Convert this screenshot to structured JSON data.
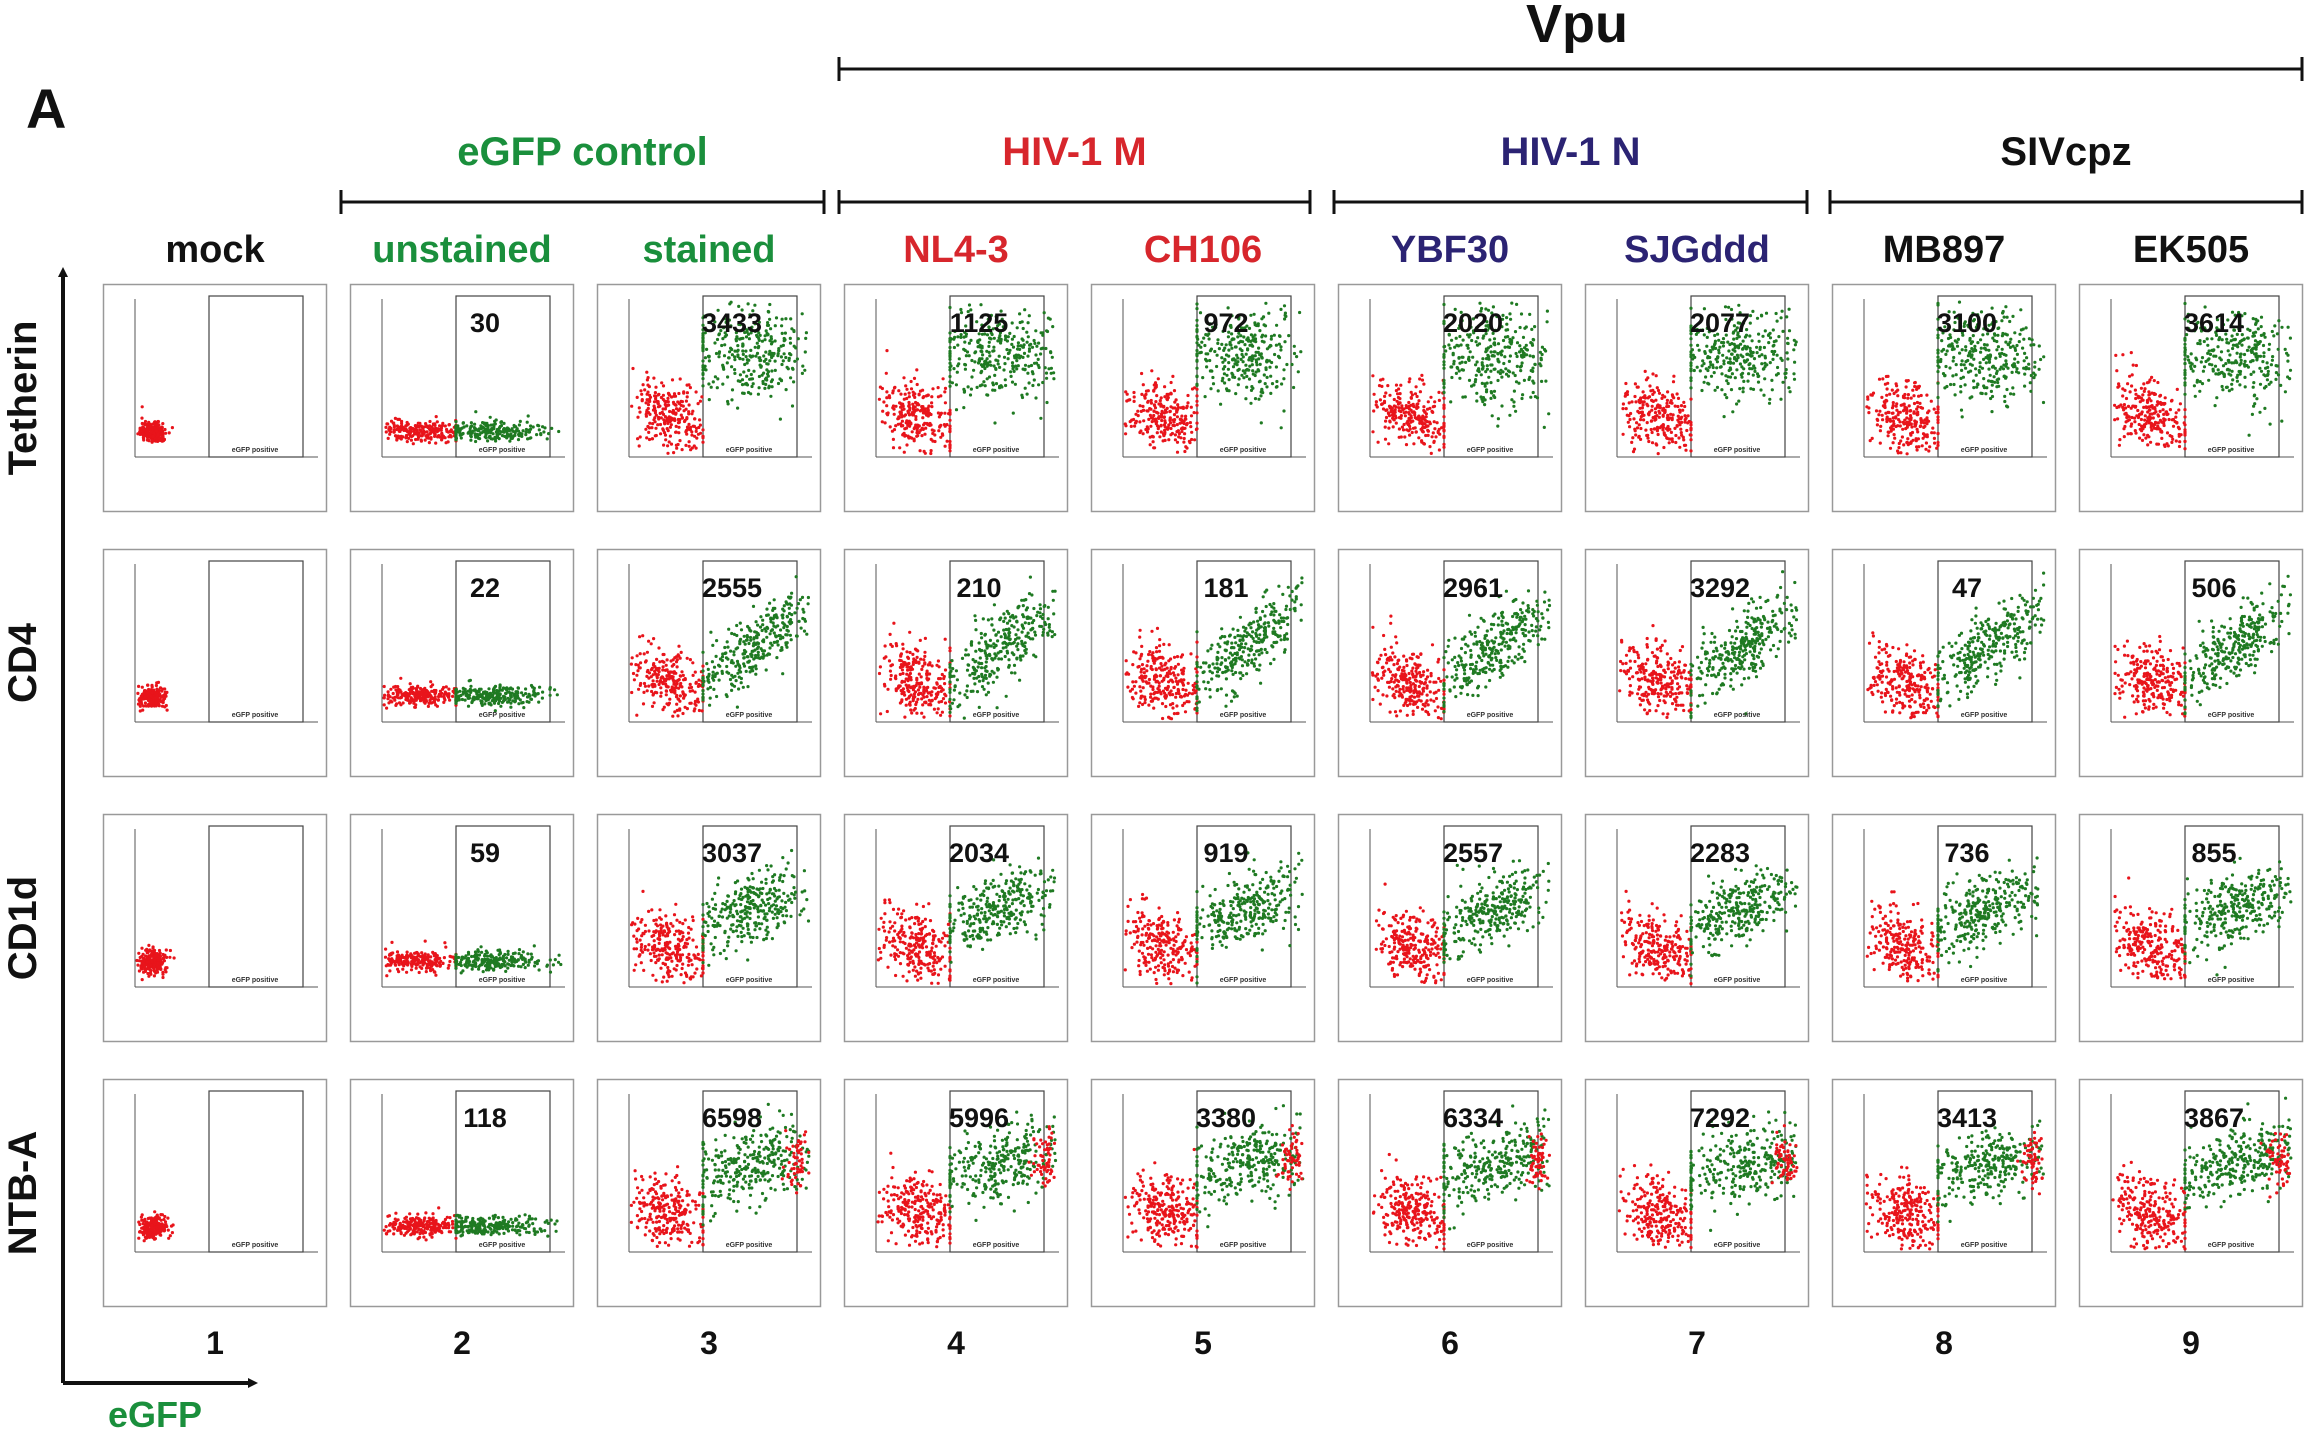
{
  "panel_label": "A",
  "super_group": "Vpu",
  "groups": [
    {
      "label": "eGFP control"
    },
    {
      "label": "HIV-1 M"
    },
    {
      "label": "HIV-1 N"
    },
    {
      "label": "SIVcpz"
    }
  ],
  "columns": [
    {
      "label": "mock",
      "number": 1
    },
    {
      "label": "unstained",
      "number": 2
    },
    {
      "label": "stained",
      "number": 3
    },
    {
      "label": "NL4-3",
      "number": 4
    },
    {
      "label": "CH106",
      "number": 5
    },
    {
      "label": "YBF30",
      "number": 6
    },
    {
      "label": "SJGddd",
      "number": 7
    },
    {
      "label": "MB897",
      "number": 8
    },
    {
      "label": "EK505",
      "number": 9
    }
  ],
  "rows": [
    {
      "label": "Tetherin",
      "values": [
        30,
        3433,
        1125,
        972,
        2020,
        2077,
        3100,
        3614
      ]
    },
    {
      "label": "CD4",
      "values": [
        22,
        2555,
        210,
        181,
        2961,
        3292,
        47,
        506
      ]
    },
    {
      "label": "CD1d",
      "values": [
        59,
        3037,
        2034,
        919,
        2557,
        2283,
        736,
        855
      ]
    },
    {
      "label": "NTB-A",
      "values": [
        118,
        6598,
        5996,
        3380,
        6334,
        7292,
        3413,
        3867
      ]
    }
  ],
  "gate_label": "eGFP positive",
  "x_axis_label": "eGFP"
}
